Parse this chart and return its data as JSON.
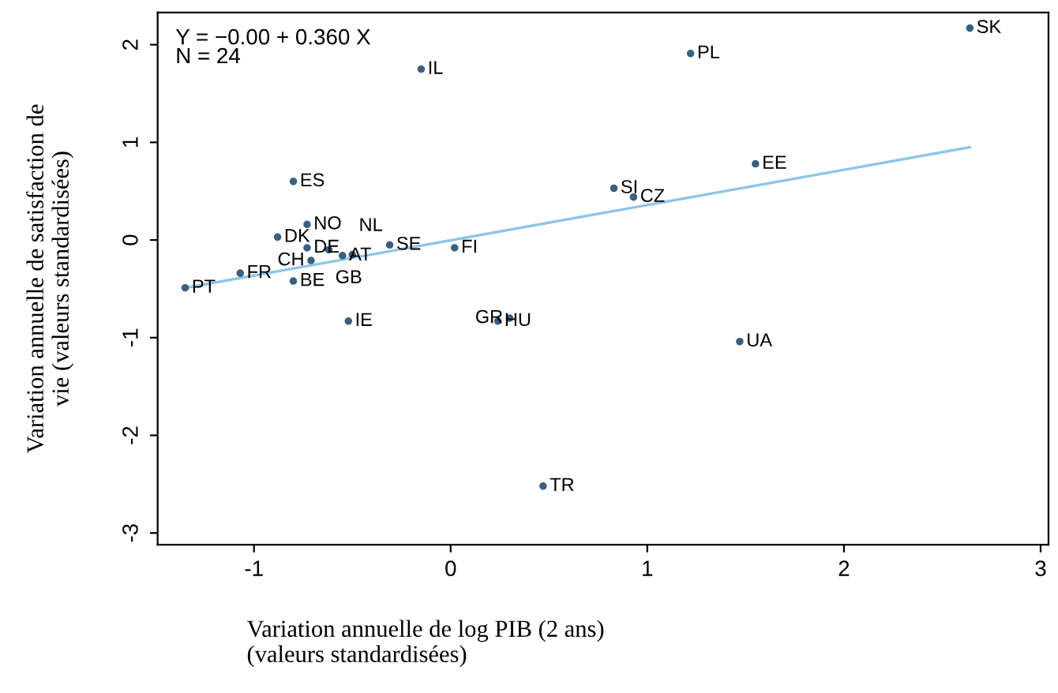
{
  "chart_data": {
    "type": "scatter",
    "xlabel": "Variation annuelle de log PIB (2 ans)\n(valeurs standardisées)",
    "ylabel": "Variation annuelle de satisfaction de\nvie (valeurs standardisées)",
    "xlim": [
      -1.49,
      3.04
    ],
    "ylim": [
      -3.12,
      2.33
    ],
    "xticks": [
      -1,
      0,
      1,
      2,
      3
    ],
    "yticks": [
      -3,
      -2,
      -1,
      0,
      1,
      2
    ],
    "grid": false,
    "series": [
      {
        "marker": "circle",
        "color": "#3b5f80",
        "x": [
          -1.35,
          -1.07,
          -0.88,
          -0.8,
          -0.73,
          -0.8,
          -0.73,
          -0.71,
          -0.62,
          -0.55,
          -0.5,
          -0.31,
          0.02,
          -0.52,
          -0.15,
          0.24,
          0.3,
          0.47,
          0.83,
          0.93,
          1.22,
          1.55,
          1.47,
          2.64
        ],
        "values": [
          -0.49,
          -0.34,
          0.03,
          0.6,
          0.16,
          -0.42,
          -0.08,
          -0.21,
          -0.1,
          -0.16,
          -0.15,
          -0.05,
          -0.08,
          -0.83,
          1.75,
          -0.83,
          -0.8,
          -2.52,
          0.53,
          0.44,
          1.91,
          0.78,
          -1.04,
          2.17
        ]
      },
      {
        "type": "line",
        "color": "#8ec5ea",
        "x": [
          -1.35,
          2.64
        ],
        "values": [
          -0.49,
          0.95
        ]
      }
    ],
    "annotations": [
      "Y = −0.00 + 0.360 X\nN = 24",
      {
        "text": "PT",
        "x": -1.35,
        "y": -0.49
      },
      {
        "text": "FR",
        "x": -1.07,
        "y": -0.34
      },
      {
        "text": "DK",
        "x": -0.88,
        "y": 0.03
      },
      {
        "text": "ES",
        "x": -0.8,
        "y": 0.6
      },
      {
        "text": "NO",
        "x": -0.73,
        "y": 0.16
      },
      {
        "text": "BE",
        "x": -0.8,
        "y": -0.42
      },
      {
        "text": "DE",
        "x": -0.73,
        "y": -0.08
      },
      {
        "text": "CH",
        "x": -0.71,
        "y": -0.21
      },
      {
        "text": "GB",
        "x": -0.62,
        "y": -0.1
      },
      {
        "text": "AT",
        "x": -0.55,
        "y": -0.16
      },
      {
        "text": "NL",
        "x": -0.5,
        "y": -0.15
      },
      {
        "text": "SE",
        "x": -0.31,
        "y": -0.05
      },
      {
        "text": "FI",
        "x": 0.02,
        "y": -0.08
      },
      {
        "text": "IE",
        "x": -0.52,
        "y": -0.83
      },
      {
        "text": "IL",
        "x": -0.15,
        "y": 1.75
      },
      {
        "text": "HU",
        "x": 0.24,
        "y": -0.83
      },
      {
        "text": "GR",
        "x": 0.3,
        "y": -0.8
      },
      {
        "text": "TR",
        "x": 0.47,
        "y": -2.52
      },
      {
        "text": "SI",
        "x": 0.83,
        "y": 0.53
      },
      {
        "text": "CZ",
        "x": 0.93,
        "y": 0.44
      },
      {
        "text": "PL",
        "x": 1.22,
        "y": 1.91
      },
      {
        "text": "EE",
        "x": 1.55,
        "y": 0.78
      },
      {
        "text": "UA",
        "x": 1.47,
        "y": -1.04
      },
      {
        "text": "SK",
        "x": 2.64,
        "y": 2.17
      }
    ]
  }
}
